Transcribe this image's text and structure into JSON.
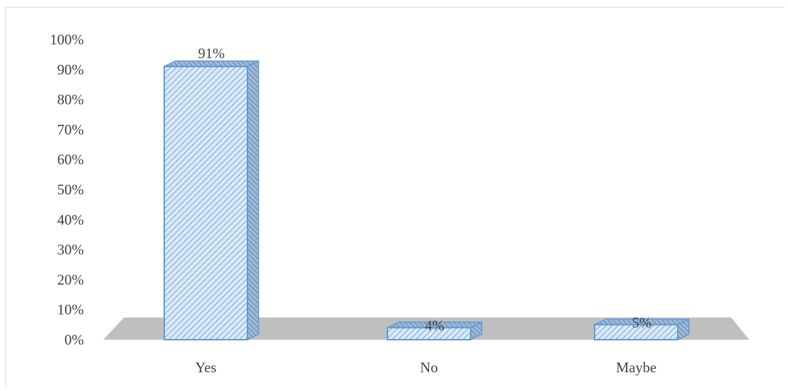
{
  "chart_data": {
    "type": "bar",
    "categories": [
      "Yes",
      "No",
      "Maybe"
    ],
    "values": [
      91,
      4,
      5
    ],
    "data_labels": [
      "91%",
      "4%",
      "5%"
    ],
    "y_tick_labels": [
      "0%",
      "10%",
      "20%",
      "30%",
      "40%",
      "50%",
      "60%",
      "70%",
      "80%",
      "90%",
      "100%"
    ],
    "ylim": [
      0,
      100
    ],
    "title": "",
    "xlabel": "",
    "ylabel": "",
    "grid": false,
    "legend": "none",
    "style": "3d-column-hatched",
    "colors": {
      "bar_fill": "#dbe9f7",
      "bar_hatch": "#5b8fd1",
      "bar_outline": "#5b9bd5",
      "floor": "#bfbfbf",
      "text": "#404040"
    }
  }
}
